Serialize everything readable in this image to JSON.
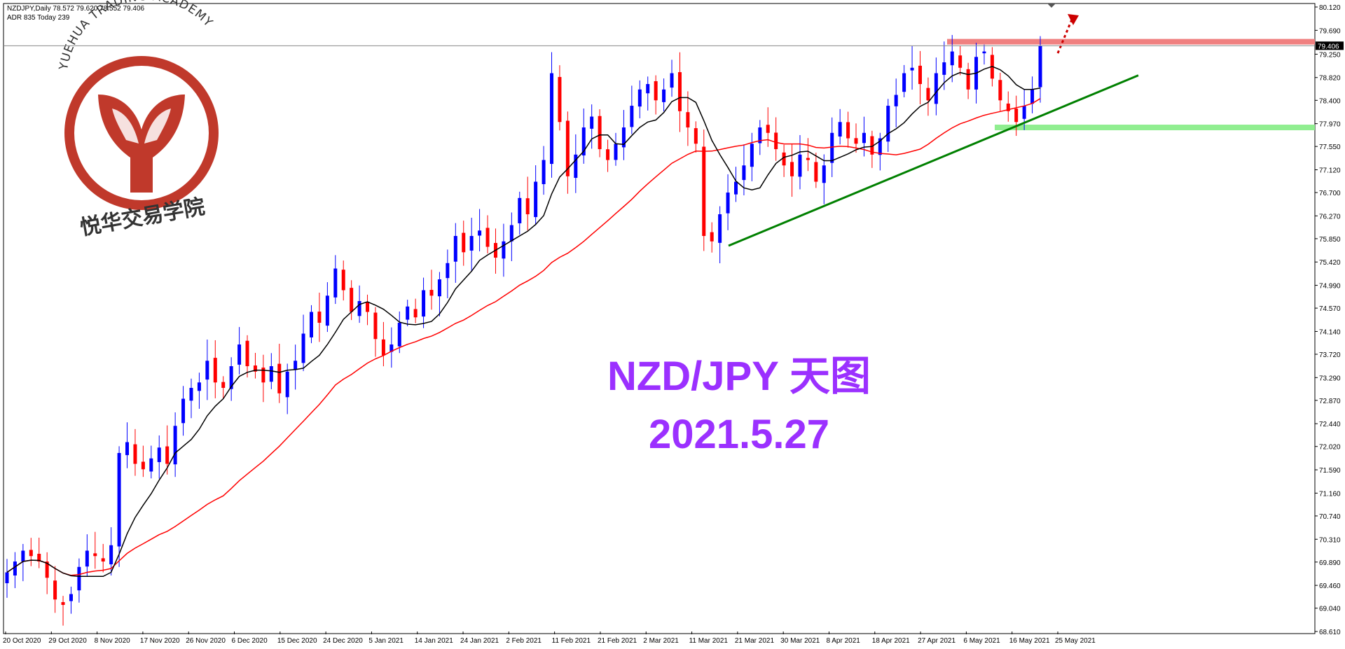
{
  "header": {
    "symbol_line": "NZDJPY,Daily  78.572 79.620 78.552 79.406",
    "adr_line": "ADR 835  Today 239"
  },
  "logo": {
    "arc_text": "YUEHUA TRADING ACADEMY",
    "cn_text": "悦华交易学院"
  },
  "annotation": {
    "title": "NZD/JPY 天图",
    "date": "2021.5.27"
  },
  "colors": {
    "bull_candle": "#0000ff",
    "bear_candle": "#ff0000",
    "ma_fast": "#000000",
    "ma_slow": "#ff0000",
    "trendline": "#008000",
    "resistance_zone": "#f08080",
    "support_zone": "#90ee90",
    "annotation_text": "#9b30ff",
    "logo_red": "#c0392b",
    "arrow": "#cc0000"
  },
  "chart_data": {
    "type": "candlestick",
    "symbol": "NZDJPY",
    "timeframe": "Daily",
    "ylim": [
      68.61,
      80.12
    ],
    "y_ticks": [
      "80.120",
      "79.690",
      "79.250",
      "78.820",
      "78.400",
      "77.970",
      "77.550",
      "77.120",
      "76.700",
      "76.270",
      "75.850",
      "75.420",
      "74.990",
      "74.570",
      "74.140",
      "73.720",
      "73.290",
      "72.870",
      "72.440",
      "72.020",
      "71.590",
      "71.160",
      "70.740",
      "70.310",
      "69.890",
      "69.460",
      "69.040",
      "68.610"
    ],
    "x_ticks": [
      "20 Oct 2020",
      "29 Oct 2020",
      "8 Nov 2020",
      "17 Nov 2020",
      "26 Nov 2020",
      "6 Dec 2020",
      "15 Dec 2020",
      "24 Dec 2020",
      "5 Jan 2021",
      "14 Jan 2021",
      "24 Jan 2021",
      "2 Feb 2021",
      "11 Feb 2021",
      "21 Feb 2021",
      "2 Mar 2021",
      "11 Mar 2021",
      "21 Mar 2021",
      "30 Mar 2021",
      "8 Apr 2021",
      "18 Apr 2021",
      "27 Apr 2021",
      "6 May 2021",
      "16 May 2021",
      "25 May 2021"
    ],
    "current_price": "79.406",
    "close_path": [
      69.7,
      69.9,
      70.1,
      70.0,
      69.9,
      69.6,
      69.2,
      69.1,
      69.3,
      69.8,
      70.1,
      70.0,
      69.9,
      70.2,
      71.9,
      72.1,
      71.7,
      71.6,
      71.8,
      72.0,
      71.7,
      72.4,
      72.9,
      73.1,
      73.2,
      73.6,
      73.2,
      73.1,
      73.5,
      73.9,
      73.5,
      73.4,
      73.2,
      73.5,
      73.0,
      73.4,
      73.6,
      74.1,
      74.5,
      74.3,
      74.8,
      75.3,
      74.9,
      74.5,
      74.7,
      74.5,
      74.0,
      73.7,
      73.9,
      74.3,
      74.6,
      74.4,
      74.9,
      74.8,
      75.1,
      75.4,
      75.9,
      75.6,
      75.9,
      76.0,
      75.7,
      75.5,
      75.8,
      76.1,
      76.6,
      76.3,
      76.9,
      77.3,
      78.9,
      78.0,
      77.0,
      77.4,
      77.9,
      78.1,
      77.5,
      77.3,
      77.6,
      77.9,
      78.3,
      78.6,
      78.7,
      78.4,
      78.6,
      78.9,
      78.2,
      77.9,
      77.6,
      75.9,
      75.8,
      76.3,
      76.7,
      76.9,
      77.2,
      77.6,
      77.9,
      77.8,
      77.5,
      77.2,
      77.0,
      77.4,
      77.3,
      76.9,
      77.2,
      77.8,
      78.0,
      77.7,
      77.6,
      77.8,
      77.4,
      77.7,
      78.3,
      78.5,
      78.9,
      79.0,
      78.7,
      78.4,
      78.9,
      79.1,
      79.3,
      79.0,
      78.6,
      79.2,
      79.3,
      78.8,
      78.4,
      78.2,
      78.0,
      78.3,
      78.6,
      79.406
    ],
    "ma_fast_label": "",
    "ma_slow_label": ""
  }
}
